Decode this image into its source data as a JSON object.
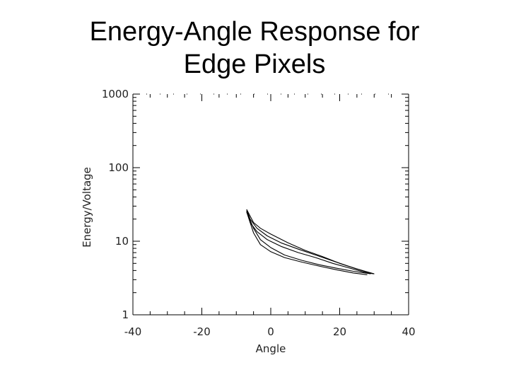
{
  "title": {
    "line1": "Energy-Angle Response for",
    "line2": "Edge Pixels"
  },
  "chart_data": {
    "type": "line",
    "title": "Energy-Angle Response for Edge Pixels",
    "xlabel": "Angle",
    "ylabel": "Energy/Voltage",
    "xlim": [
      -40,
      40
    ],
    "ylim": [
      1,
      1000
    ],
    "yscale": "log",
    "xticks": [
      "-40",
      "-20",
      "0",
      "20",
      "40"
    ],
    "yticks": [
      "1",
      "10",
      "100",
      "1000"
    ],
    "grid": false,
    "series": [
      {
        "x": [
          -7,
          -5,
          -3,
          0,
          5,
          10,
          15,
          20,
          25,
          30
        ],
        "y": [
          27,
          18,
          15,
          12.5,
          9.5,
          7.5,
          6.2,
          5.0,
          4.2,
          3.6
        ]
      },
      {
        "x": [
          -7,
          -6,
          -4,
          -1,
          3,
          8,
          13,
          18,
          23,
          28,
          30
        ],
        "y": [
          27,
          20,
          15,
          11.8,
          9.5,
          7.8,
          6.5,
          5.4,
          4.5,
          3.8,
          3.6
        ]
      },
      {
        "x": [
          -7,
          -6,
          -4,
          -1,
          3,
          8,
          13,
          18,
          23,
          28,
          30
        ],
        "y": [
          26,
          18,
          13.5,
          10.5,
          8.5,
          7.0,
          6.0,
          5.0,
          4.3,
          3.7,
          3.6
        ]
      },
      {
        "x": [
          -7,
          -5,
          -3,
          0,
          4,
          9,
          14,
          19,
          24,
          29
        ],
        "y": [
          25,
          15,
          10.5,
          8.2,
          6.5,
          5.5,
          4.8,
          4.3,
          3.9,
          3.6
        ]
      },
      {
        "x": [
          -7,
          -5,
          -3,
          0,
          4,
          9,
          14,
          19,
          24,
          28
        ],
        "y": [
          25,
          13,
          9.0,
          7.2,
          6.0,
          5.2,
          4.6,
          4.1,
          3.7,
          3.5
        ]
      }
    ]
  }
}
